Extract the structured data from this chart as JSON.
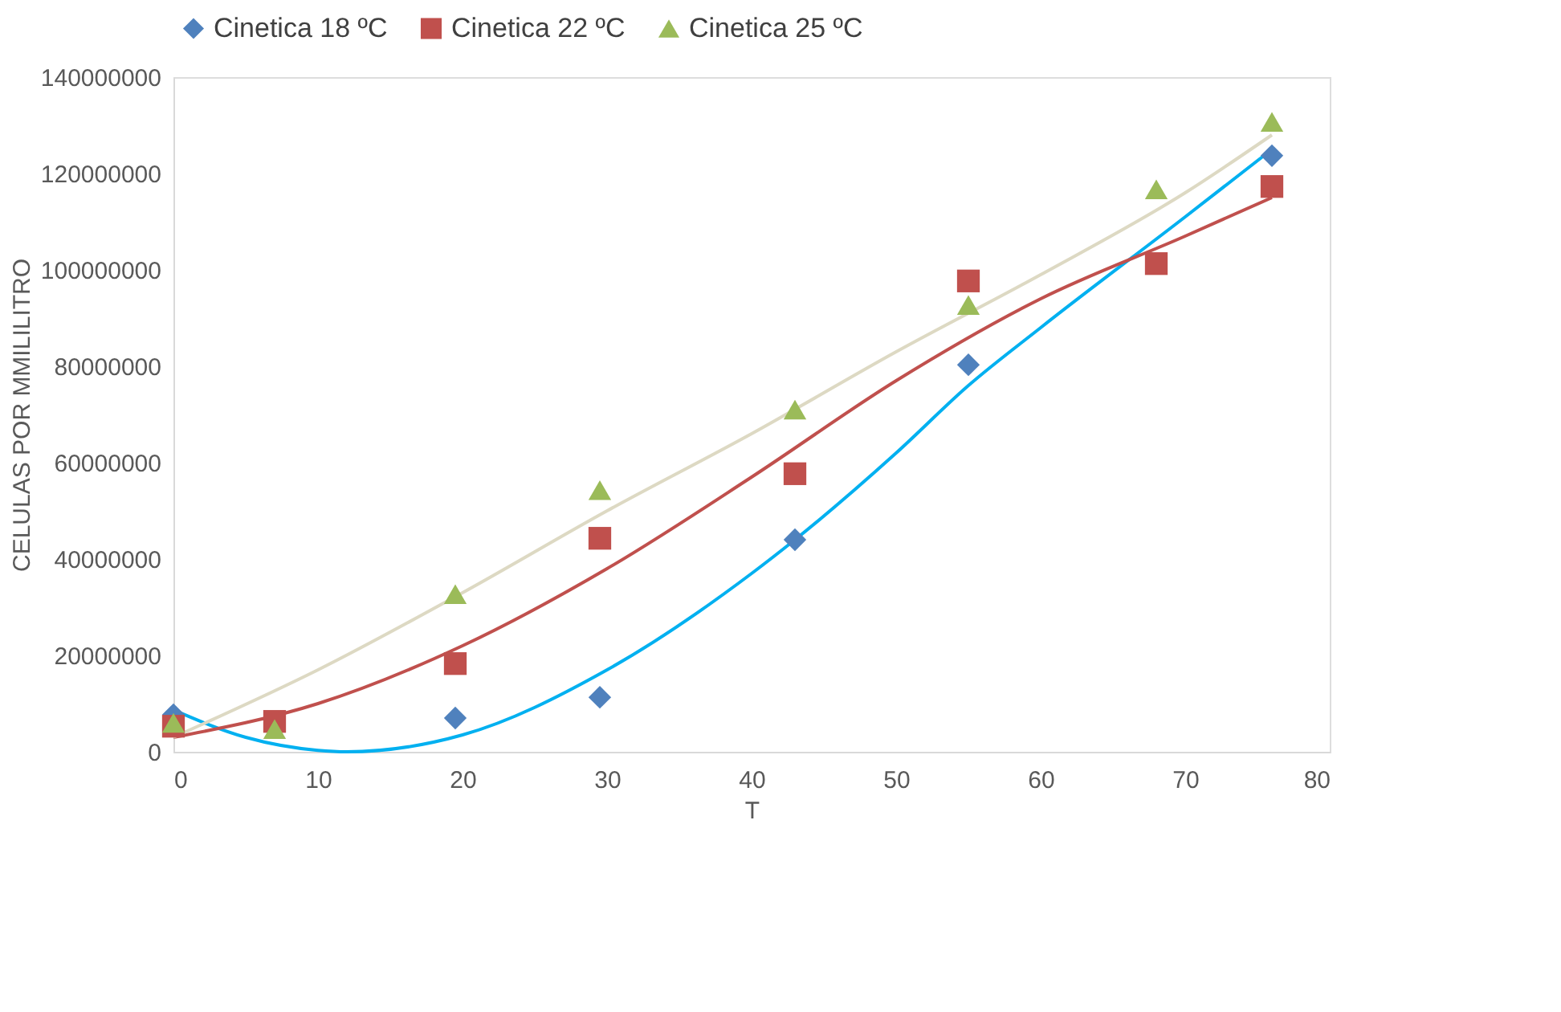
{
  "chart_data": {
    "type": "scatter",
    "xlabel": "T",
    "ylabel": "CELULAS POR MMILILITRO",
    "xlim": [
      0,
      80
    ],
    "xticks": [
      0,
      10,
      20,
      30,
      40,
      50,
      60,
      70,
      80
    ],
    "ylim": [
      0,
      140000000
    ],
    "yticks": [
      0,
      20000000,
      40000000,
      60000000,
      80000000,
      100000000,
      120000000,
      140000000
    ],
    "grid": false,
    "legend": "top",
    "series": [
      {
        "type": "line",
        "color": "#00b0f0",
        "x": [
          0,
          5,
          10,
          12,
          20,
          30,
          40,
          43,
          50,
          55,
          60,
          70,
          76
        ],
        "values": [
          8700000,
          3000000,
          300000,
          0,
          3500000,
          17000000,
          37000000,
          44000000,
          62000000,
          76000000,
          88000000,
          111000000,
          125000000
        ]
      },
      {
        "type": "line",
        "color": "#c0504d",
        "x": [
          0,
          10,
          20,
          30,
          40,
          50,
          60,
          70,
          76
        ],
        "values": [
          3000000,
          10000000,
          22000000,
          38000000,
          57000000,
          77000000,
          94000000,
          107000000,
          115000000
        ]
      },
      {
        "type": "line",
        "color": "#ddd9c3",
        "x": [
          0,
          10,
          20,
          30,
          40,
          50,
          60,
          70,
          76
        ],
        "values": [
          3000000,
          17000000,
          33000000,
          50000000,
          66000000,
          83000000,
          99000000,
          116000000,
          128000000
        ]
      },
      {
        "name": "Cinetica 18 ºC",
        "color": "#4f81bd",
        "marker": "diamond",
        "x": [
          0,
          19.5,
          29.5,
          43,
          55,
          76
        ],
        "values": [
          7700000,
          7000000,
          11300000,
          44000000,
          80300000,
          123700000
        ]
      },
      {
        "name": "Cinetica 22 ºC",
        "color": "#c0504d",
        "marker": "square",
        "x": [
          0,
          7,
          19.5,
          29.5,
          43,
          55,
          68,
          76
        ],
        "values": [
          5300000,
          6300000,
          18300000,
          44300000,
          57700000,
          97700000,
          101300000,
          117300000
        ]
      },
      {
        "name": "Cinetica 25 ºC",
        "color": "#9bbb59",
        "marker": "triangle",
        "x": [
          0,
          7,
          19.5,
          29.5,
          43,
          55,
          68,
          76
        ],
        "values": [
          6000000,
          4700000,
          32700000,
          54300000,
          71000000,
          92700000,
          116700000,
          130700000
        ]
      }
    ]
  }
}
